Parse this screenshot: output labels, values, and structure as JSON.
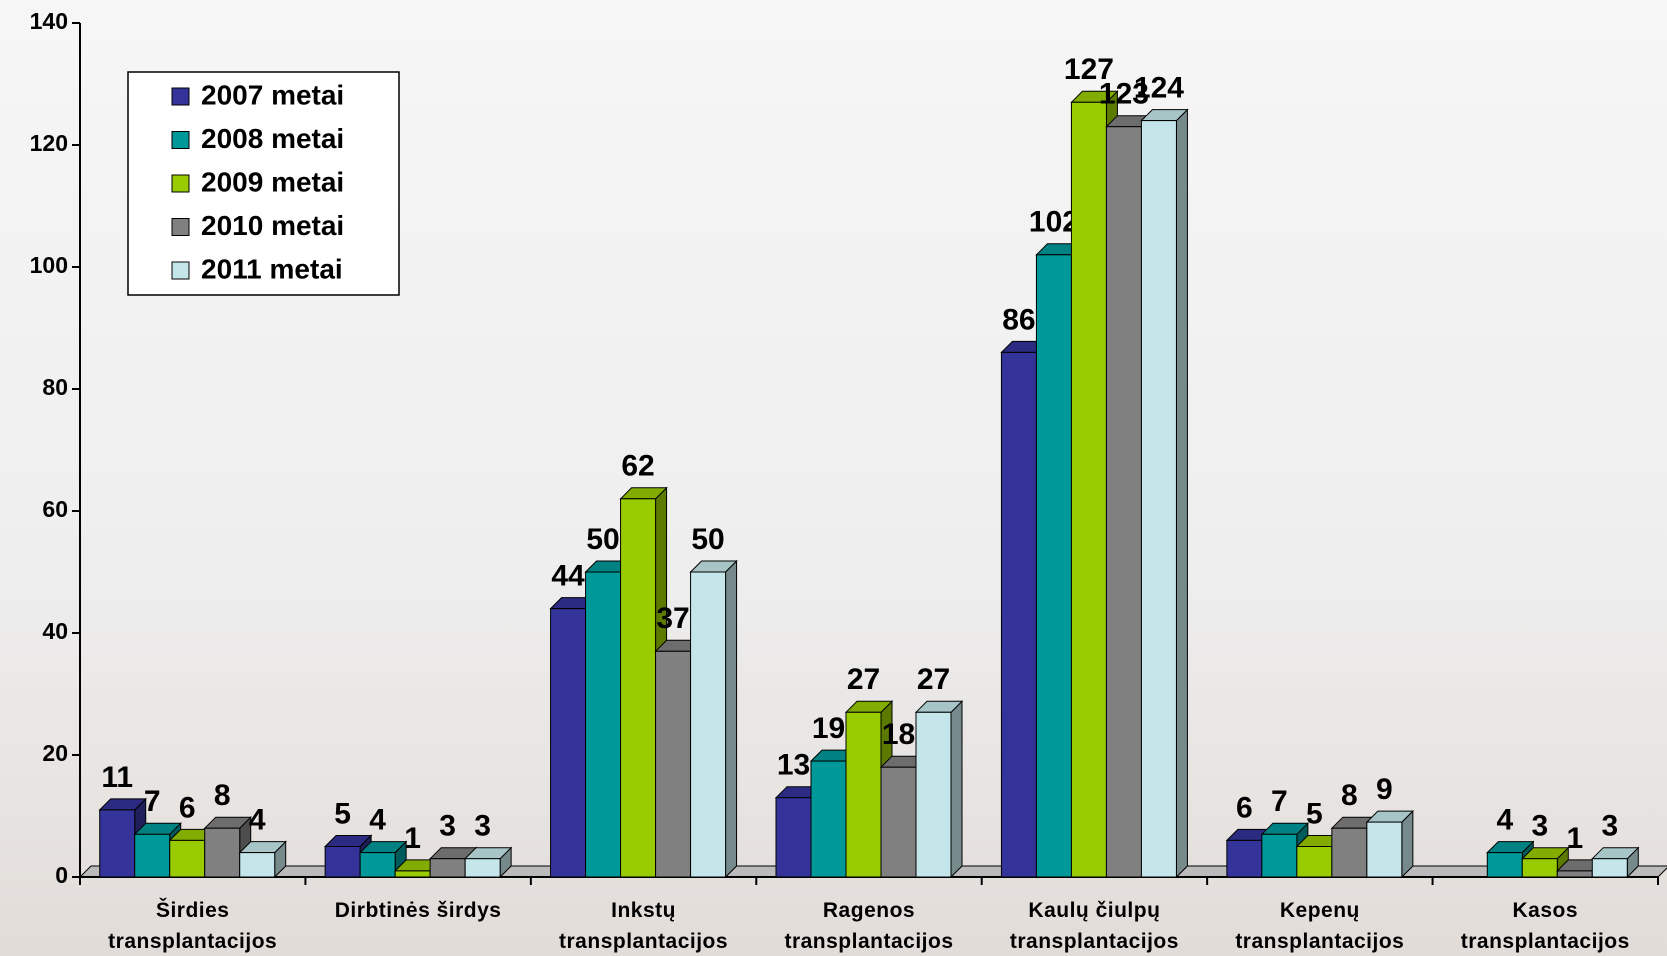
{
  "chart_data": {
    "type": "bar",
    "categories": [
      "Širdies transplantacijos",
      "Dirbtinės širdys",
      "Inkstų transplantacijos",
      "Ragenos transplantacijos",
      "Kaulų čiulpų transplantacijos",
      "Kepenų transplantacijos",
      "Kasos transplantacijos"
    ],
    "series": [
      {
        "name": "2007 metai",
        "color": "#333399",
        "values": [
          11,
          5,
          44,
          13,
          86,
          6,
          null
        ]
      },
      {
        "name": "2008 metai",
        "color": "#009999",
        "values": [
          7,
          4,
          50,
          19,
          102,
          7,
          4
        ]
      },
      {
        "name": "2009 metai",
        "color": "#99cc00",
        "values": [
          6,
          1,
          62,
          27,
          127,
          5,
          3
        ]
      },
      {
        "name": "2010 metai",
        "color": "#808080",
        "values": [
          8,
          3,
          37,
          18,
          123,
          8,
          1
        ]
      },
      {
        "name": "2011 metai",
        "color": "#c4e6ea",
        "values": [
          4,
          3,
          50,
          27,
          124,
          9,
          3
        ]
      }
    ],
    "ylim": [
      0,
      140
    ],
    "yticks": [
      0,
      20,
      40,
      60,
      80,
      100,
      120,
      140
    ],
    "legend": "upper-left",
    "data_labels": true
  }
}
